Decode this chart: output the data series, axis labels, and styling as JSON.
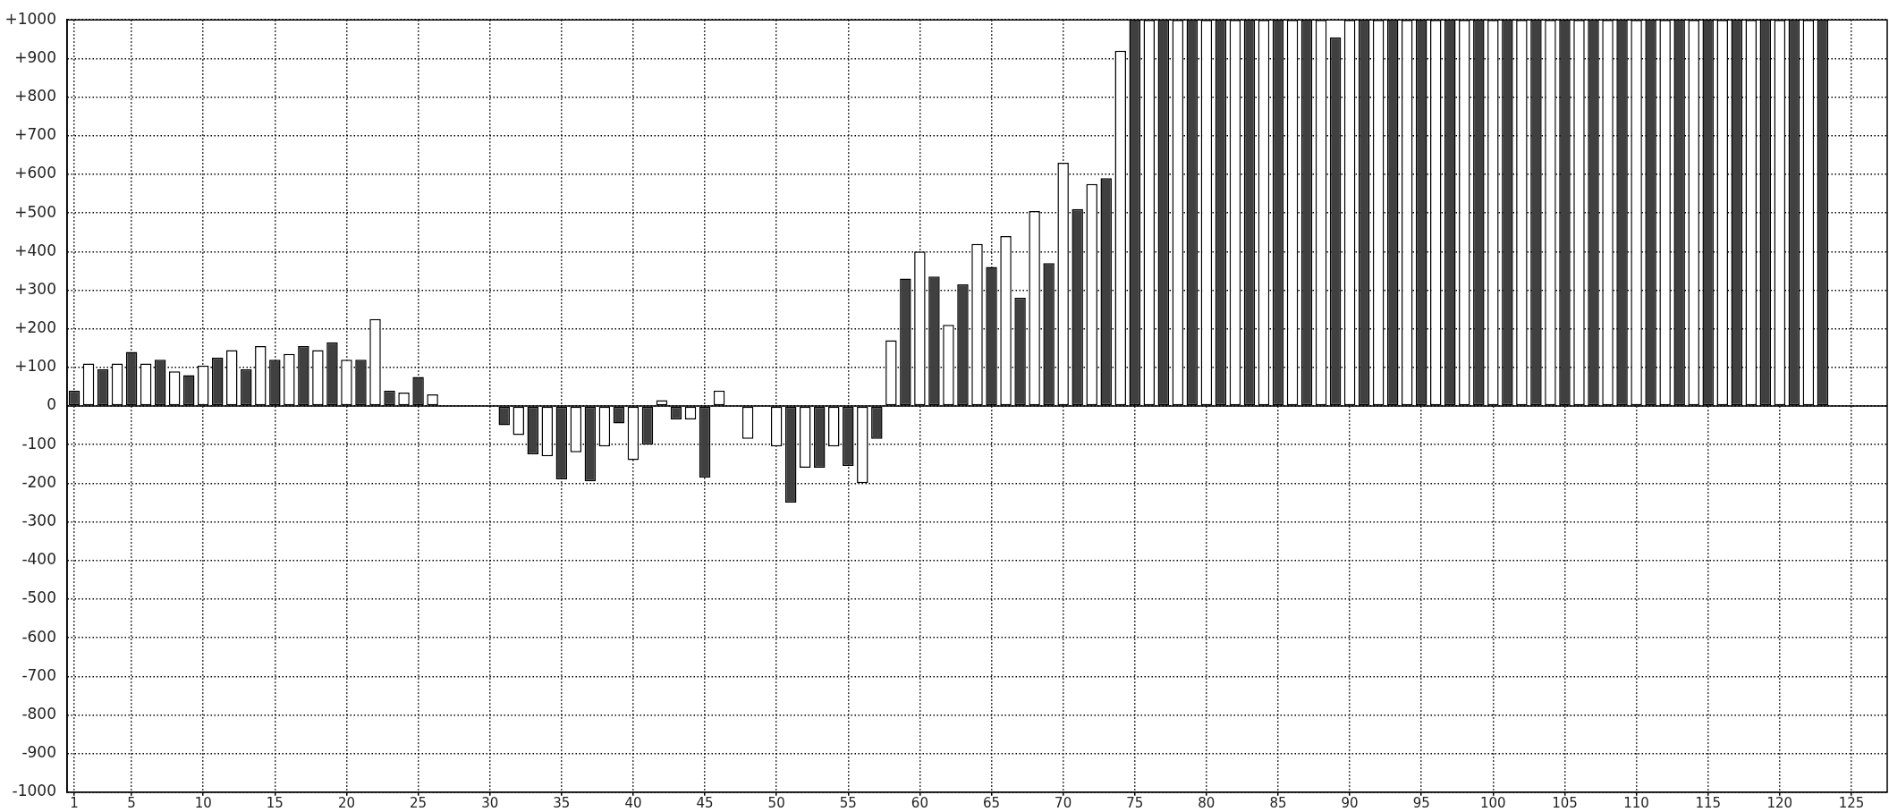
{
  "chart_data": {
    "type": "bar",
    "x": [
      1,
      2,
      3,
      4,
      5,
      6,
      7,
      8,
      9,
      10,
      11,
      12,
      13,
      14,
      15,
      16,
      17,
      18,
      19,
      20,
      21,
      22,
      23,
      24,
      25,
      26,
      27,
      28,
      29,
      30,
      31,
      32,
      33,
      34,
      35,
      36,
      37,
      38,
      39,
      40,
      41,
      42,
      43,
      44,
      45,
      46,
      47,
      48,
      49,
      50,
      51,
      52,
      53,
      54,
      55,
      56,
      57,
      58,
      59,
      60,
      61,
      62,
      63,
      64,
      65,
      66,
      67,
      68,
      69,
      70,
      71,
      72,
      73,
      74,
      75,
      76,
      77,
      78,
      79,
      80,
      81,
      82,
      83,
      84,
      85,
      86,
      87,
      88,
      89,
      90,
      91,
      92,
      93,
      94,
      95,
      96,
      97,
      98,
      99,
      100,
      101,
      102,
      103,
      104,
      105,
      106,
      107,
      108,
      109,
      110,
      111,
      112,
      113,
      114,
      115,
      116,
      117,
      118,
      119,
      120,
      121,
      122,
      123
    ],
    "values": [
      40,
      110,
      95,
      110,
      140,
      110,
      120,
      90,
      80,
      105,
      125,
      145,
      95,
      155,
      120,
      135,
      155,
      145,
      165,
      120,
      120,
      225,
      40,
      35,
      75,
      30,
      null,
      null,
      null,
      null,
      -50,
      -75,
      -125,
      -130,
      -190,
      -120,
      -195,
      -105,
      -45,
      -140,
      -100,
      15,
      -35,
      -35,
      -185,
      40,
      null,
      -85,
      null,
      -105,
      -250,
      -160,
      -160,
      -105,
      -155,
      -200,
      -85,
      170,
      330,
      400,
      335,
      210,
      315,
      420,
      360,
      440,
      280,
      505,
      370,
      630,
      510,
      575,
      590,
      920,
      1000,
      1000,
      1000,
      1000,
      1000,
      1000,
      1000,
      1000,
      1000,
      1000,
      1000,
      1000,
      1000,
      1000,
      955,
      1000,
      1000,
      1000,
      1000,
      1000,
      1000,
      1000,
      1000,
      1000,
      1000,
      1000,
      1000,
      1000,
      1000,
      1000,
      1000,
      1000,
      1000,
      1000,
      1000,
      1000,
      1000,
      1000,
      1000,
      1000,
      1000,
      1000,
      1000,
      1000,
      1000,
      1000,
      1000,
      1000,
      1000
    ],
    "colors": [
      "#404040",
      "#ffffff",
      "#404040",
      "#ffffff",
      "#404040",
      "#ffffff",
      "#404040",
      "#ffffff",
      "#404040",
      "#ffffff",
      "#404040",
      "#ffffff",
      "#404040",
      "#ffffff",
      "#404040",
      "#ffffff",
      "#404040",
      "#ffffff",
      "#404040",
      "#ffffff",
      "#404040",
      "#ffffff",
      "#404040",
      "#ffffff",
      "#404040",
      "#ffffff",
      null,
      null,
      null,
      null,
      "#404040",
      "#ffffff",
      "#404040",
      "#ffffff",
      "#404040",
      "#ffffff",
      "#404040",
      "#ffffff",
      "#404040",
      "#ffffff",
      "#404040",
      "#ffffff",
      "#404040",
      "#ffffff",
      "#404040",
      "#ffffff",
      null,
      "#ffffff",
      null,
      "#ffffff",
      "#404040",
      "#ffffff",
      "#404040",
      "#ffffff",
      "#404040",
      "#ffffff",
      "#404040",
      "#ffffff",
      "#404040",
      "#ffffff",
      "#404040",
      "#ffffff",
      "#404040",
      "#ffffff",
      "#404040",
      "#ffffff",
      "#404040",
      "#ffffff",
      "#404040",
      "#ffffff",
      "#404040",
      "#ffffff",
      "#404040",
      "#ffffff",
      "#404040",
      "#ffffff",
      "#404040",
      "#ffffff",
      "#404040",
      "#ffffff",
      "#404040",
      "#ffffff",
      "#404040",
      "#ffffff",
      "#404040",
      "#ffffff",
      "#404040",
      "#ffffff",
      "#404040",
      "#ffffff",
      "#404040",
      "#ffffff",
      "#404040",
      "#ffffff",
      "#404040",
      "#ffffff",
      "#404040",
      "#ffffff",
      "#404040",
      "#ffffff",
      "#404040",
      "#ffffff",
      "#404040",
      "#ffffff",
      "#404040",
      "#ffffff",
      "#404040",
      "#ffffff",
      "#404040",
      "#ffffff",
      "#404040",
      "#ffffff",
      "#404040",
      "#ffffff",
      "#404040",
      "#ffffff",
      "#404040",
      "#ffffff",
      "#404040",
      "#ffffff",
      "#404040",
      "#ffffff",
      "#404040"
    ],
    "xlim": [
      0.5,
      127.5
    ],
    "xticks": [
      1,
      5,
      10,
      15,
      20,
      25,
      30,
      35,
      40,
      45,
      50,
      55,
      60,
      65,
      70,
      75,
      80,
      85,
      90,
      95,
      100,
      105,
      110,
      115,
      120,
      125
    ],
    "ylim": [
      -1000,
      1000
    ],
    "yticks": [
      -1000,
      -900,
      -800,
      -700,
      -600,
      -500,
      -400,
      -300,
      -200,
      -100,
      0,
      {
        "value": 100,
        "label": "+100"
      },
      {
        "value": 200,
        "label": "+200"
      },
      {
        "value": 300,
        "label": "+300"
      },
      {
        "value": 400,
        "label": "+400"
      },
      {
        "value": 500,
        "label": "+500"
      },
      {
        "value": 600,
        "label": "+600"
      },
      {
        "value": 700,
        "label": "+700"
      },
      {
        "value": 800,
        "label": "+800"
      },
      {
        "value": 900,
        "label": "+900"
      },
      {
        "value": 1000,
        "label": "+1000"
      }
    ],
    "grid": true
  }
}
